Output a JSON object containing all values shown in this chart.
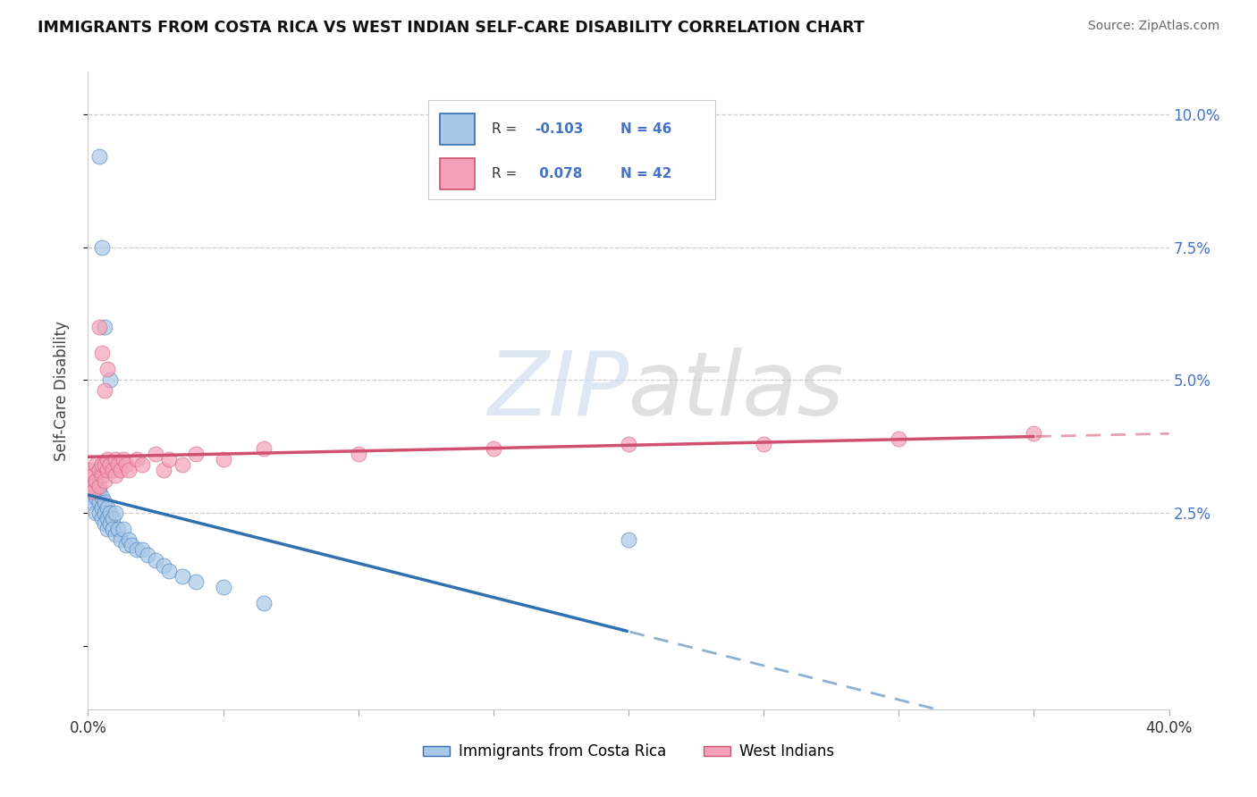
{
  "title": "IMMIGRANTS FROM COSTA RICA VS WEST INDIAN SELF-CARE DISABILITY CORRELATION CHART",
  "source": "Source: ZipAtlas.com",
  "ylabel": "Self-Care Disability",
  "x_min": 0.0,
  "x_max": 0.4,
  "y_min": -0.012,
  "y_max": 0.108,
  "y_ticks": [
    0.0,
    0.025,
    0.05,
    0.075,
    0.1
  ],
  "y_tick_labels_right": [
    "",
    "2.5%",
    "5.0%",
    "7.5%",
    "10.0%"
  ],
  "color_blue": "#a8c8e8",
  "color_pink": "#f4a0b8",
  "color_blue_line": "#3070b0",
  "color_pink_line": "#d05070",
  "legend_label1": "Immigrants from Costa Rica",
  "legend_label2": "West Indians",
  "cr_x": [
    0.001,
    0.001,
    0.002,
    0.002,
    0.003,
    0.003,
    0.003,
    0.004,
    0.004,
    0.004,
    0.005,
    0.005,
    0.005,
    0.006,
    0.006,
    0.006,
    0.007,
    0.007,
    0.007,
    0.008,
    0.008,
    0.009,
    0.009,
    0.01,
    0.01,
    0.011,
    0.012,
    0.013,
    0.014,
    0.015,
    0.016,
    0.018,
    0.02,
    0.022,
    0.025,
    0.028,
    0.03,
    0.035,
    0.04,
    0.05,
    0.065,
    0.2,
    0.004,
    0.005,
    0.006,
    0.008
  ],
  "cr_y": [
    0.03,
    0.028,
    0.029,
    0.027,
    0.031,
    0.028,
    0.025,
    0.029,
    0.027,
    0.025,
    0.028,
    0.026,
    0.024,
    0.027,
    0.025,
    0.023,
    0.026,
    0.024,
    0.022,
    0.025,
    0.023,
    0.024,
    0.022,
    0.025,
    0.021,
    0.022,
    0.02,
    0.022,
    0.019,
    0.02,
    0.019,
    0.018,
    0.018,
    0.017,
    0.016,
    0.015,
    0.014,
    0.013,
    0.012,
    0.011,
    0.008,
    0.02,
    0.092,
    0.075,
    0.06,
    0.05
  ],
  "wi_x": [
    0.001,
    0.001,
    0.002,
    0.002,
    0.003,
    0.003,
    0.004,
    0.004,
    0.005,
    0.005,
    0.006,
    0.006,
    0.007,
    0.007,
    0.008,
    0.009,
    0.01,
    0.01,
    0.011,
    0.012,
    0.013,
    0.014,
    0.015,
    0.018,
    0.02,
    0.025,
    0.028,
    0.03,
    0.035,
    0.04,
    0.05,
    0.065,
    0.1,
    0.15,
    0.2,
    0.25,
    0.3,
    0.35,
    0.004,
    0.005,
    0.006,
    0.007
  ],
  "wi_y": [
    0.033,
    0.03,
    0.032,
    0.029,
    0.034,
    0.031,
    0.033,
    0.03,
    0.032,
    0.034,
    0.031,
    0.034,
    0.033,
    0.035,
    0.034,
    0.033,
    0.035,
    0.032,
    0.034,
    0.033,
    0.035,
    0.034,
    0.033,
    0.035,
    0.034,
    0.036,
    0.033,
    0.035,
    0.034,
    0.036,
    0.035,
    0.037,
    0.036,
    0.037,
    0.038,
    0.038,
    0.039,
    0.04,
    0.06,
    0.055,
    0.048,
    0.052
  ]
}
